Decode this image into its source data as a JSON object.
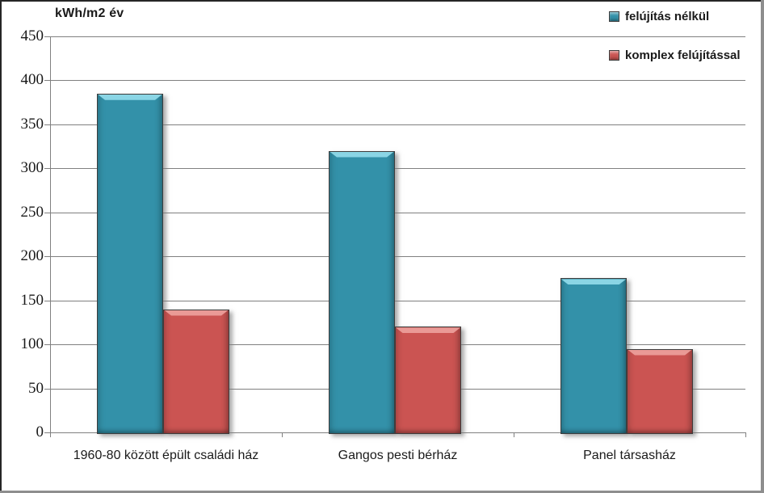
{
  "chart_data": {
    "type": "bar",
    "title": "kWh/m2 év",
    "ylabel": "kWh/m2 év",
    "xlabel": "",
    "categories": [
      "1960-80 között épült családi ház",
      "Gangos pesti bérház",
      "Panel társasház"
    ],
    "series": [
      {
        "name": "felújítás nélkül",
        "values": [
          385,
          320,
          175
        ],
        "color": "#3391a9",
        "highlight": "#8fd9e8"
      },
      {
        "name": "komplex felújítással",
        "values": [
          140,
          120,
          95
        ],
        "color": "#cb5452",
        "highlight": "#eb9e9a"
      }
    ],
    "ylim": [
      0,
      450
    ],
    "ytick_step": 50,
    "grid": true,
    "legend_position": "top-right",
    "colors": {
      "gridline": "#808080",
      "axis": "#808080",
      "text": "#1a1a1a",
      "frame_dark": "#262626",
      "frame_light": "#8e8e8e",
      "background": "#ffffff"
    }
  }
}
